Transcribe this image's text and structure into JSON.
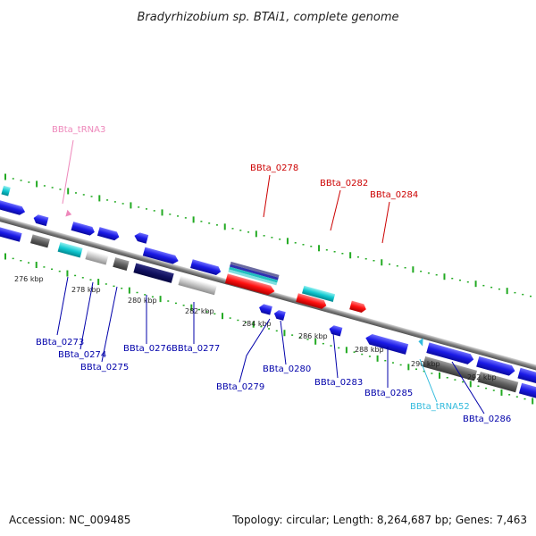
{
  "title": "Bradyrhizobium sp. BTAi1, complete genome",
  "footer": {
    "accession": "Accession: NC_009485",
    "topology": "Topology: circular; Length: 8,264,687 bp; Genes: 7,463"
  },
  "ticks": [
    "276 kbp",
    "278 kbp",
    "280 kbp",
    "282 kbp",
    "284 kbp",
    "286 kbp",
    "288 kbp",
    "290 kbp",
    "292 kbp"
  ],
  "labels": {
    "trna3": "BBta_tRNA3",
    "g0278": "BBta_0278",
    "g0282": "BBta_0282",
    "g0284": "BBta_0284",
    "g0273": "BBta_0273",
    "g0274": "BBta_0274",
    "g0275": "BBta_0275",
    "g0276": "BBta_0276",
    "g0277": "BBta_0277",
    "g0279": "BBta_0279",
    "g0280": "BBta_0280",
    "g0283": "BBta_0283",
    "g0285": "BBta_0285",
    "trna52": "BBta_tRNA52",
    "g0286": "BBta_0286"
  },
  "colors": {
    "forward_cds": "#2020e0",
    "reverse_cds": "#2020e0",
    "rna": "#ff4444",
    "trna_pink": "#ee88bb",
    "trna_cyan": "#33bbdd",
    "backbone": "#888888",
    "tick_green": "#22aa22",
    "label_blue": "#0000aa",
    "label_red": "#cc0000"
  }
}
